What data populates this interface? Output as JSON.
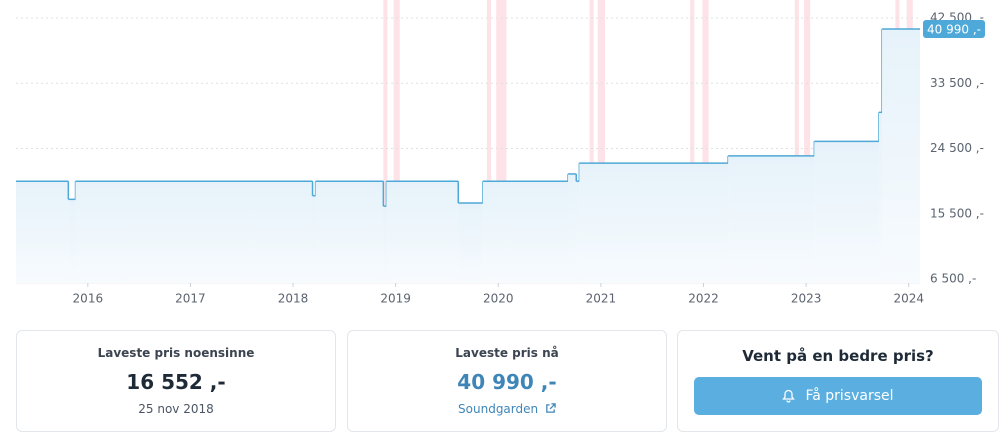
{
  "chart_data": {
    "type": "step",
    "x": [
      2015.3,
      2015.81,
      2015.88,
      2018.19,
      2018.22,
      2018.88,
      2018.91,
      2019.61,
      2019.85,
      2020.68,
      2020.76,
      2020.79,
      2022.24,
      2023.08,
      2023.71,
      2023.74
    ],
    "values": [
      19990,
      17490,
      19990,
      17990,
      19990,
      16552,
      19990,
      16990,
      19990,
      20990,
      19990,
      22490,
      23490,
      25490,
      29490,
      40990
    ],
    "value_labels": [
      null,
      null,
      null,
      null,
      null,
      null,
      null,
      null,
      null,
      null,
      null,
      null,
      null,
      null,
      null,
      "40 990 ,-"
    ],
    "color": "#4ea8d8",
    "xlim": [
      2015.3,
      2024.11
    ],
    "xticks": [
      2016,
      2017,
      2018,
      2019,
      2020,
      2021,
      2022,
      2023,
      2024
    ],
    "ylim": [
      6500,
      42500
    ],
    "yticks": [
      {
        "value": 6500,
        "label": "6 500 ,-"
      },
      {
        "value": 15500,
        "label": "15 500 ,-"
      },
      {
        "value": 24500,
        "label": "24 500 ,-"
      },
      {
        "value": 33500,
        "label": "33 500 ,-"
      },
      {
        "value": 42500,
        "label": "42 500 ,-"
      }
    ],
    "grid": true,
    "bands": [
      [
        2018.88,
        2018.92
      ],
      [
        2018.98,
        2019.04
      ],
      [
        2019.89,
        2019.93
      ],
      [
        2019.98,
        2020.08
      ],
      [
        2020.89,
        2020.93
      ],
      [
        2020.97,
        2021.04
      ],
      [
        2021.87,
        2021.91
      ],
      [
        2021.99,
        2022.05
      ],
      [
        2022.89,
        2022.93
      ],
      [
        2022.98,
        2023.04
      ],
      [
        2023.87,
        2023.91
      ],
      [
        2023.98,
        2024.04
      ]
    ],
    "band_color": "#fde3e8"
  },
  "cards": [
    {
      "title": "Laveste pris noensinne",
      "value": "16 552 ,-",
      "note": "25 nov 2018"
    },
    {
      "title": "Laveste pris nå",
      "value": "40 990 ,-",
      "note": "Soundgarden"
    },
    {
      "title": "Vent på en bedre pris?",
      "button": "Få prisvarsel"
    }
  ]
}
